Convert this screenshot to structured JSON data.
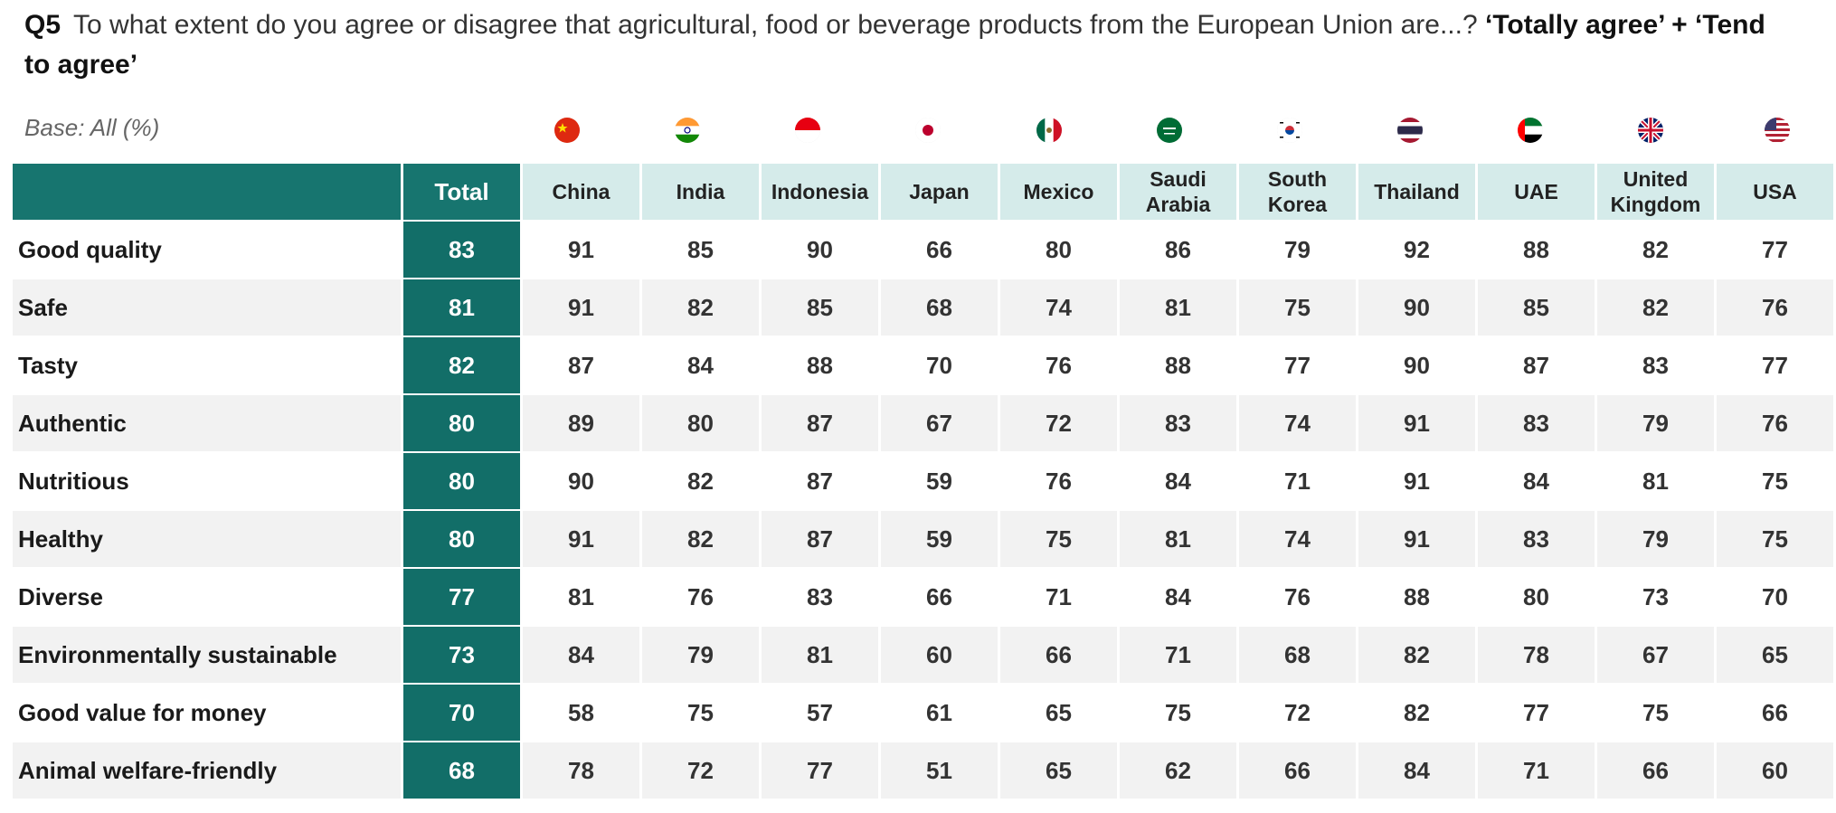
{
  "question": {
    "code": "Q5",
    "text": "To what extent do you agree or disagree that agricultural, food or beverage products from the European Union are...?",
    "emphasis": "‘Totally agree’ + ‘Tend to agree’"
  },
  "base_label": "Base: All (%)",
  "chart_data": {
    "type": "table",
    "columns": [
      "Total",
      "China",
      "India",
      "Indonesia",
      "Japan",
      "Mexico",
      "Saudi Arabia",
      "South Korea",
      "Thailand",
      "UAE",
      "United Kingdom",
      "USA"
    ],
    "column_labels": [
      [
        "Total"
      ],
      [
        "China"
      ],
      [
        "India"
      ],
      [
        "Indonesia"
      ],
      [
        "Japan"
      ],
      [
        "Mexico"
      ],
      [
        "Saudi",
        "Arabia"
      ],
      [
        "South",
        "Korea"
      ],
      [
        "Thailand"
      ],
      [
        "UAE"
      ],
      [
        "United",
        "Kingdom"
      ],
      [
        "USA"
      ]
    ],
    "flags": [
      "china-flag-icon",
      "india-flag-icon",
      "indonesia-flag-icon",
      "japan-flag-icon",
      "mexico-flag-icon",
      "saudi-arabia-flag-icon",
      "south-korea-flag-icon",
      "thailand-flag-icon",
      "uae-flag-icon",
      "united-kingdom-flag-icon",
      "usa-flag-icon"
    ],
    "rows": [
      {
        "label": "Good quality",
        "values": [
          83,
          91,
          85,
          90,
          66,
          80,
          86,
          79,
          92,
          88,
          82,
          77
        ]
      },
      {
        "label": "Safe",
        "values": [
          81,
          91,
          82,
          85,
          68,
          74,
          81,
          75,
          90,
          85,
          82,
          76
        ]
      },
      {
        "label": "Tasty",
        "values": [
          82,
          87,
          84,
          88,
          70,
          76,
          88,
          77,
          90,
          87,
          83,
          77
        ]
      },
      {
        "label": "Authentic",
        "values": [
          80,
          89,
          80,
          87,
          67,
          72,
          83,
          74,
          91,
          83,
          79,
          76
        ]
      },
      {
        "label": "Nutritious",
        "values": [
          80,
          90,
          82,
          87,
          59,
          76,
          84,
          71,
          91,
          84,
          81,
          75
        ]
      },
      {
        "label": "Healthy",
        "values": [
          80,
          91,
          82,
          87,
          59,
          75,
          81,
          74,
          91,
          83,
          79,
          75
        ]
      },
      {
        "label": "Diverse",
        "values": [
          77,
          81,
          76,
          83,
          66,
          71,
          84,
          76,
          88,
          80,
          73,
          70
        ]
      },
      {
        "label": "Environmentally sustainable",
        "values": [
          73,
          84,
          79,
          81,
          60,
          66,
          71,
          68,
          82,
          78,
          67,
          65
        ]
      },
      {
        "label": "Good value for money",
        "values": [
          70,
          58,
          75,
          57,
          61,
          65,
          75,
          72,
          82,
          77,
          75,
          66
        ]
      },
      {
        "label": "Animal welfare-friendly",
        "values": [
          68,
          78,
          72,
          77,
          51,
          65,
          62,
          66,
          84,
          71,
          66,
          60
        ]
      }
    ]
  },
  "colors": {
    "total_column": "#126e68",
    "header_fill": "#d5ebea",
    "alt_row": "#f2f2f2"
  }
}
